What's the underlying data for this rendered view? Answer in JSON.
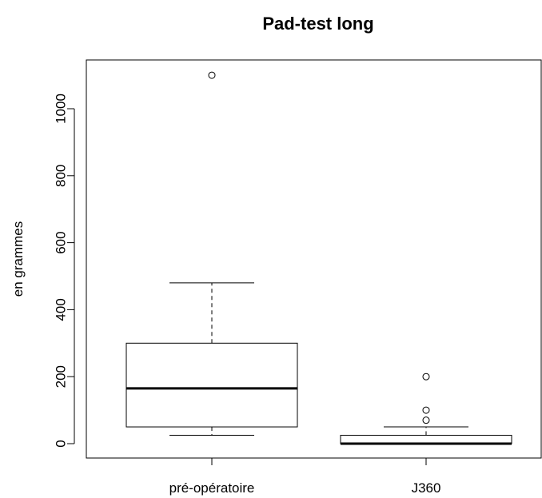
{
  "chart_data": {
    "type": "boxplot",
    "title": "Pad-test long",
    "xlabel": "",
    "ylabel": "en grammes",
    "ylim": [
      -40,
      1150
    ],
    "yticks": [
      0,
      200,
      400,
      600,
      800,
      1000
    ],
    "ytick_labels": [
      "0",
      "200",
      "400",
      "600",
      "800",
      "1000"
    ],
    "grid": false,
    "categories": [
      "pré-opératoire",
      "J360"
    ],
    "boxes": [
      {
        "category": "pré-opératoire",
        "whisker_low": 25,
        "q1": 50,
        "median": 165,
        "q3": 300,
        "whisker_high": 480,
        "outliers": [
          1100
        ]
      },
      {
        "category": "J360",
        "whisker_low": 0,
        "q1": 0,
        "median": 0,
        "q3": 25,
        "whisker_high": 50,
        "outliers": [
          70,
          100,
          200
        ]
      }
    ]
  }
}
